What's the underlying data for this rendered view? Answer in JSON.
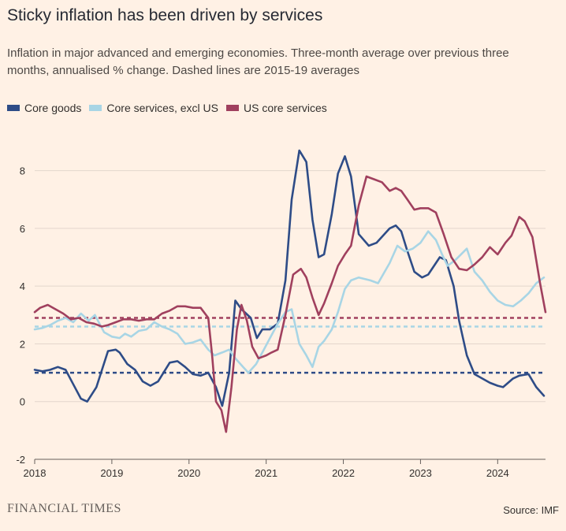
{
  "header": {
    "title": "Sticky inflation has been driven by services",
    "subtitle": "Inflation in major advanced and emerging economies. Three-month average over previous three months, annualised % change. Dashed lines are 2015-19 averages"
  },
  "footer": {
    "brand": "FINANCIAL TIMES",
    "source": "Source: IMF"
  },
  "chart_data": {
    "type": "line",
    "title": "Sticky inflation has been driven by services",
    "subtitle": "Inflation in major advanced and emerging economies. Three-month average over previous three months, annualised % change. Dashed lines are 2015-19 averages",
    "xlabel": "",
    "ylabel": "",
    "xlim": [
      2018.0,
      2024.62
    ],
    "ylim": [
      -2,
      9
    ],
    "yticks": [
      -2,
      0,
      2,
      4,
      6,
      8
    ],
    "xticks": [
      2018,
      2019,
      2020,
      2021,
      2022,
      2023,
      2024
    ],
    "xtick_labels": [
      "2018",
      "2019",
      "2020",
      "2021",
      "2022",
      "2023",
      "2024"
    ],
    "grid": "horizontal",
    "legend_position": "top-left",
    "series": [
      {
        "name": "Core goods",
        "color": "#2E4C87",
        "x": [
          2018.0,
          2018.1,
          2018.2,
          2018.3,
          2018.4,
          2018.5,
          2018.6,
          2018.68,
          2018.8,
          2018.95,
          2019.05,
          2019.1,
          2019.2,
          2019.3,
          2019.4,
          2019.5,
          2019.6,
          2019.75,
          2019.85,
          2019.95,
          2020.05,
          2020.15,
          2020.25,
          2020.35,
          2020.43,
          2020.52,
          2020.6,
          2020.68,
          2020.8,
          2020.88,
          2020.95,
          2021.05,
          2021.15,
          2021.25,
          2021.33,
          2021.43,
          2021.52,
          2021.6,
          2021.68,
          2021.75,
          2021.85,
          2021.93,
          2022.02,
          2022.1,
          2022.2,
          2022.33,
          2022.43,
          2022.6,
          2022.68,
          2022.75,
          2022.82,
          2022.92,
          2023.02,
          2023.1,
          2023.25,
          2023.33,
          2023.43,
          2023.5,
          2023.6,
          2023.7,
          2023.8,
          2023.9,
          2024.0,
          2024.07,
          2024.2,
          2024.28,
          2024.4,
          2024.5,
          2024.6
        ],
        "y": [
          1.1,
          1.05,
          1.1,
          1.2,
          1.1,
          0.6,
          0.1,
          0.0,
          0.5,
          1.75,
          1.8,
          1.7,
          1.3,
          1.1,
          0.7,
          0.55,
          0.7,
          1.35,
          1.4,
          1.2,
          0.95,
          0.9,
          1.0,
          0.5,
          -0.15,
          1.0,
          3.5,
          3.2,
          2.9,
          2.2,
          2.5,
          2.5,
          2.7,
          4.2,
          7.0,
          8.7,
          8.3,
          6.3,
          5.0,
          5.1,
          6.5,
          7.9,
          8.5,
          7.8,
          5.8,
          5.4,
          5.5,
          6.0,
          6.1,
          5.9,
          5.3,
          4.5,
          4.3,
          4.4,
          5.0,
          4.9,
          4.0,
          2.8,
          1.6,
          0.95,
          0.8,
          0.65,
          0.55,
          0.5,
          0.8,
          0.9,
          0.95,
          0.5,
          0.2
        ]
      },
      {
        "name": "Core services, excl US",
        "color": "#A8D5E5",
        "x": [
          2018.0,
          2018.1,
          2018.2,
          2018.3,
          2018.4,
          2018.5,
          2018.6,
          2018.7,
          2018.78,
          2018.9,
          2019.0,
          2019.1,
          2019.17,
          2019.25,
          2019.35,
          2019.45,
          2019.55,
          2019.65,
          2019.75,
          2019.85,
          2019.95,
          2020.05,
          2020.15,
          2020.25,
          2020.33,
          2020.43,
          2020.52,
          2020.6,
          2020.7,
          2020.77,
          2020.87,
          2020.95,
          2021.05,
          2021.15,
          2021.25,
          2021.33,
          2021.43,
          2021.52,
          2021.6,
          2021.68,
          2021.75,
          2021.85,
          2021.93,
          2022.02,
          2022.1,
          2022.2,
          2022.35,
          2022.45,
          2022.6,
          2022.7,
          2022.8,
          2022.9,
          2023.0,
          2023.1,
          2023.2,
          2023.28,
          2023.35,
          2023.45,
          2023.6,
          2023.7,
          2023.8,
          2023.9,
          2024.0,
          2024.1,
          2024.2,
          2024.3,
          2024.4,
          2024.5,
          2024.6
        ],
        "y": [
          2.5,
          2.55,
          2.65,
          2.8,
          2.9,
          2.75,
          3.05,
          2.8,
          3.0,
          2.4,
          2.25,
          2.2,
          2.35,
          2.25,
          2.45,
          2.5,
          2.75,
          2.6,
          2.5,
          2.35,
          2.0,
          2.05,
          2.15,
          1.8,
          1.6,
          1.7,
          1.8,
          1.5,
          1.2,
          1.0,
          1.3,
          1.7,
          2.2,
          2.7,
          3.1,
          3.2,
          2.0,
          1.6,
          1.2,
          1.9,
          2.1,
          2.5,
          3.1,
          3.9,
          4.2,
          4.3,
          4.2,
          4.1,
          4.8,
          5.4,
          5.2,
          5.3,
          5.5,
          5.9,
          5.6,
          5.1,
          4.7,
          4.9,
          5.3,
          4.5,
          4.2,
          3.8,
          3.5,
          3.35,
          3.3,
          3.5,
          3.75,
          4.1,
          4.3
        ]
      },
      {
        "name": "US core services",
        "color": "#A0405E",
        "x": [
          2018.0,
          2018.07,
          2018.17,
          2018.27,
          2018.37,
          2018.47,
          2018.57,
          2018.67,
          2018.77,
          2018.87,
          2018.95,
          2019.05,
          2019.15,
          2019.25,
          2019.35,
          2019.45,
          2019.55,
          2019.65,
          2019.75,
          2019.85,
          2019.95,
          2020.05,
          2020.15,
          2020.25,
          2020.3,
          2020.35,
          2020.42,
          2020.48,
          2020.55,
          2020.62,
          2020.68,
          2020.75,
          2020.82,
          2020.9,
          2021.0,
          2021.07,
          2021.15,
          2021.25,
          2021.35,
          2021.45,
          2021.52,
          2021.6,
          2021.68,
          2021.75,
          2021.85,
          2021.93,
          2022.02,
          2022.1,
          2022.2,
          2022.3,
          2022.4,
          2022.5,
          2022.6,
          2022.68,
          2022.75,
          2022.83,
          2022.92,
          2023.0,
          2023.1,
          2023.2,
          2023.3,
          2023.4,
          2023.5,
          2023.6,
          2023.7,
          2023.8,
          2023.9,
          2024.0,
          2024.1,
          2024.18,
          2024.28,
          2024.35,
          2024.45,
          2024.55,
          2024.62
        ],
        "y": [
          3.1,
          3.25,
          3.35,
          3.2,
          3.05,
          2.85,
          2.9,
          2.75,
          2.7,
          2.6,
          2.65,
          2.75,
          2.85,
          2.85,
          2.8,
          2.85,
          2.85,
          3.05,
          3.15,
          3.3,
          3.3,
          3.25,
          3.25,
          2.9,
          1.6,
          0.0,
          -0.3,
          -1.05,
          0.5,
          2.5,
          3.35,
          2.8,
          1.9,
          1.5,
          1.6,
          1.7,
          1.8,
          3.0,
          4.4,
          4.6,
          4.3,
          3.6,
          3.0,
          3.4,
          4.1,
          4.7,
          5.1,
          5.4,
          6.8,
          7.8,
          7.7,
          7.6,
          7.3,
          7.4,
          7.3,
          7.0,
          6.65,
          6.7,
          6.7,
          6.55,
          5.8,
          5.0,
          4.6,
          4.55,
          4.75,
          5.0,
          5.35,
          5.1,
          5.5,
          5.75,
          6.4,
          6.25,
          5.7,
          4.1,
          3.1
        ]
      }
    ],
    "reference_lines": [
      {
        "series": "Core goods",
        "value": 1.0,
        "color": "#2E4C87"
      },
      {
        "series": "Core services, excl US",
        "value": 2.6,
        "color": "#A8D5E5"
      },
      {
        "series": "US core services",
        "value": 2.9,
        "color": "#A0405E"
      }
    ]
  }
}
